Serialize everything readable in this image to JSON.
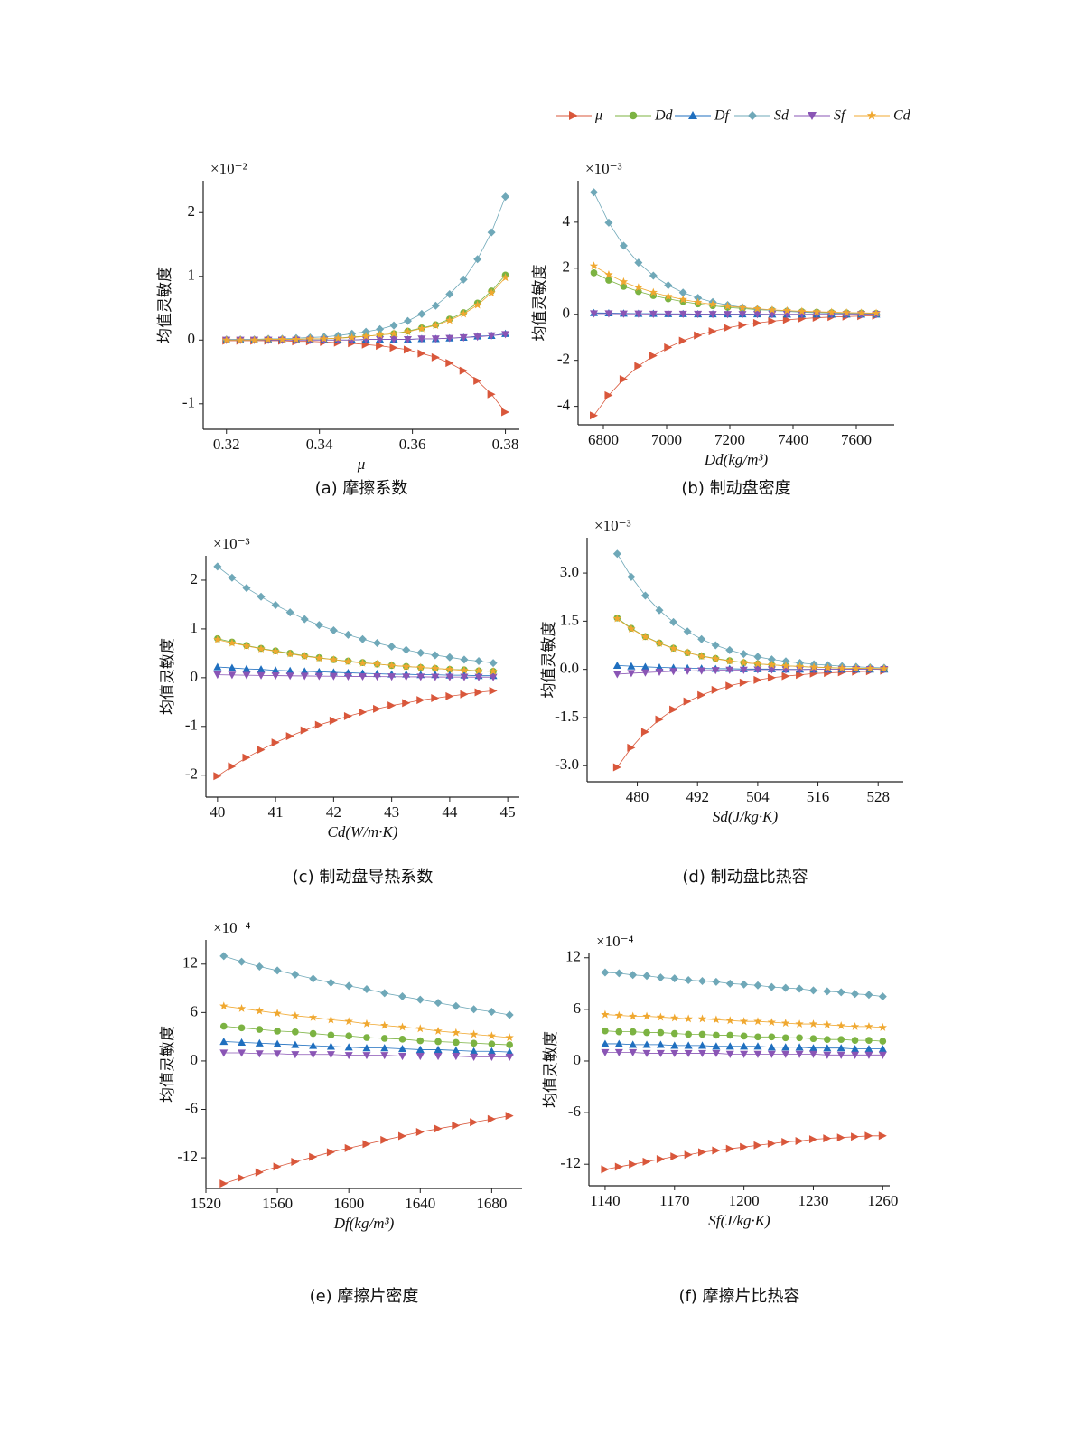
{
  "legend": [
    {
      "name": "μ",
      "color": "#d9573b",
      "marker": "triangle-right"
    },
    {
      "name": "Dd",
      "color": "#7cb342",
      "marker": "circle"
    },
    {
      "name": "Df",
      "color": "#1f6fbf",
      "marker": "triangle-up"
    },
    {
      "name": "Sd",
      "color": "#6fa8b8",
      "marker": "diamond"
    },
    {
      "name": "Sf",
      "color": "#8a55b5",
      "marker": "triangle-down"
    },
    {
      "name": "Cd",
      "color": "#f0a830",
      "marker": "star"
    }
  ],
  "chart_data": [
    {
      "type": "line",
      "caption": "(a) 摩擦系数",
      "scale": "×10⁻²",
      "xlabel": "μ",
      "ylabel": "均值灵敏度",
      "x": [
        0.32,
        0.323,
        0.326,
        0.329,
        0.332,
        0.335,
        0.338,
        0.341,
        0.344,
        0.347,
        0.35,
        0.353,
        0.356,
        0.359,
        0.362,
        0.365,
        0.368,
        0.371,
        0.374,
        0.377,
        0.38
      ],
      "xlim": [
        0.315,
        0.383
      ],
      "xticks": [
        0.32,
        0.34,
        0.36,
        0.38
      ],
      "ylim": [
        -1.4,
        2.5
      ],
      "yticks": [
        -1,
        0,
        1,
        2
      ],
      "series": [
        {
          "values": [
            -0.01,
            -0.01,
            -0.01,
            -0.01,
            -0.01,
            -0.02,
            -0.02,
            -0.03,
            -0.04,
            -0.05,
            -0.07,
            -0.09,
            -0.12,
            -0.15,
            -0.21,
            -0.27,
            -0.36,
            -0.48,
            -0.64,
            -0.85,
            -1.13
          ]
        },
        {
          "values": [
            0,
            0,
            0,
            0.01,
            0.01,
            0.01,
            0.02,
            0.02,
            0.03,
            0.05,
            0.06,
            0.08,
            0.1,
            0.14,
            0.19,
            0.24,
            0.33,
            0.43,
            0.58,
            0.77,
            1.02
          ]
        },
        {
          "values": [
            0,
            0,
            0,
            0,
            0,
            0,
            0,
            0,
            0,
            0,
            0.01,
            0.01,
            0.01,
            0.01,
            0.02,
            0.02,
            0.03,
            0.04,
            0.06,
            0.07,
            0.1
          ]
        },
        {
          "values": [
            0.01,
            0.01,
            0.01,
            0.02,
            0.02,
            0.03,
            0.04,
            0.05,
            0.07,
            0.1,
            0.13,
            0.17,
            0.23,
            0.3,
            0.41,
            0.54,
            0.72,
            0.95,
            1.27,
            1.69,
            2.25
          ]
        },
        {
          "values": [
            0,
            0,
            0,
            0,
            0,
            0,
            0,
            0,
            0,
            0,
            0.01,
            0.01,
            0.01,
            0.01,
            0.02,
            0.02,
            0.03,
            0.04,
            0.05,
            0.07,
            0.09
          ]
        },
        {
          "values": [
            0,
            0,
            0,
            0.01,
            0.01,
            0.01,
            0.02,
            0.02,
            0.03,
            0.04,
            0.06,
            0.08,
            0.1,
            0.13,
            0.18,
            0.23,
            0.31,
            0.41,
            0.55,
            0.74,
            0.98
          ]
        }
      ]
    },
    {
      "type": "line",
      "caption": "(b) 制动盘密度",
      "scale": "×10⁻³",
      "xlabel": "Dd(kg/m³)",
      "ylabel": "均值灵敏度",
      "x": [
        6770,
        6817,
        6864,
        6911,
        6958,
        7005,
        7052,
        7099,
        7146,
        7193,
        7240,
        7287,
        7334,
        7381,
        7428,
        7475,
        7522,
        7569,
        7616,
        7663
      ],
      "xlim": [
        6720,
        7720
      ],
      "xticks": [
        6800,
        7000,
        7200,
        7400,
        7600
      ],
      "ylim": [
        -4.8,
        5.8
      ],
      "yticks": [
        -4,
        -2,
        0,
        2,
        4
      ],
      "series": [
        {
          "values": [
            -4.4,
            -3.52,
            -2.82,
            -2.25,
            -1.8,
            -1.44,
            -1.15,
            -0.92,
            -0.74,
            -0.59,
            -0.47,
            -0.38,
            -0.3,
            -0.24,
            -0.19,
            -0.15,
            -0.12,
            -0.1,
            -0.08,
            -0.06
          ]
        },
        {
          "values": [
            1.8,
            1.48,
            1.21,
            0.99,
            0.81,
            0.67,
            0.55,
            0.45,
            0.37,
            0.3,
            0.25,
            0.2,
            0.17,
            0.14,
            0.11,
            0.09,
            0.07,
            0.06,
            0.05,
            0.04
          ]
        },
        {
          "values": [
            0.06,
            0.05,
            0.04,
            0.03,
            0.03,
            0.02,
            0.02,
            0.01,
            0.01,
            0.01,
            0.01,
            0.01,
            0,
            0,
            0,
            0,
            0,
            0,
            0,
            0
          ]
        },
        {
          "values": [
            5.3,
            3.98,
            2.98,
            2.24,
            1.68,
            1.26,
            0.94,
            0.71,
            0.53,
            0.4,
            0.3,
            0.22,
            0.17,
            0.13,
            0.09,
            0.07,
            0.05,
            0.04,
            0.03,
            0.02
          ]
        },
        {
          "values": [
            0.03,
            0.03,
            0.02,
            0.02,
            0.01,
            0.01,
            0.01,
            0.01,
            0,
            0,
            0,
            0,
            0,
            0,
            0,
            0,
            0,
            0,
            0,
            0
          ]
        },
        {
          "values": [
            2.1,
            1.72,
            1.41,
            1.16,
            0.95,
            0.78,
            0.64,
            0.52,
            0.43,
            0.35,
            0.29,
            0.24,
            0.19,
            0.16,
            0.13,
            0.11,
            0.09,
            0.07,
            0.06,
            0.05
          ]
        }
      ]
    },
    {
      "type": "line",
      "caption": "(c) 制动盘导热系数",
      "scale": "×10⁻³",
      "xlabel": "Cd(W/m·K)",
      "ylabel": "均值灵敏度",
      "x": [
        40,
        40.25,
        40.5,
        40.75,
        41,
        41.25,
        41.5,
        41.75,
        42,
        42.25,
        42.5,
        42.75,
        43,
        43.25,
        43.5,
        43.75,
        44,
        44.25,
        44.5,
        44.75
      ],
      "xlim": [
        39.8,
        45.2
      ],
      "xticks": [
        40,
        41,
        42,
        43,
        44,
        45
      ],
      "ylim": [
        -2.45,
        2.5
      ],
      "yticks": [
        -2,
        -1,
        0,
        1,
        2
      ],
      "series": [
        {
          "values": [
            -2.02,
            -1.82,
            -1.64,
            -1.48,
            -1.33,
            -1.2,
            -1.08,
            -0.97,
            -0.88,
            -0.79,
            -0.71,
            -0.64,
            -0.57,
            -0.52,
            -0.46,
            -0.42,
            -0.38,
            -0.34,
            -0.3,
            -0.27
          ]
        },
        {
          "values": [
            0.8,
            0.73,
            0.66,
            0.6,
            0.55,
            0.5,
            0.45,
            0.41,
            0.37,
            0.34,
            0.31,
            0.28,
            0.25,
            0.23,
            0.21,
            0.19,
            0.17,
            0.16,
            0.14,
            0.13
          ]
        },
        {
          "values": [
            0.22,
            0.2,
            0.18,
            0.17,
            0.15,
            0.14,
            0.13,
            0.12,
            0.11,
            0.1,
            0.09,
            0.08,
            0.07,
            0.07,
            0.06,
            0.06,
            0.05,
            0.05,
            0.04,
            0.04
          ]
        },
        {
          "values": [
            2.28,
            2.05,
            1.84,
            1.66,
            1.49,
            1.34,
            1.2,
            1.08,
            0.97,
            0.88,
            0.79,
            0.71,
            0.64,
            0.57,
            0.51,
            0.46,
            0.42,
            0.37,
            0.34,
            0.3
          ]
        },
        {
          "values": [
            0.06,
            0.055,
            0.05,
            0.046,
            0.042,
            0.038,
            0.035,
            0.032,
            0.029,
            0.026,
            0.024,
            0.022,
            0.02,
            0.018,
            0.017,
            0.015,
            0.014,
            0.013,
            0.012,
            0.011
          ]
        },
        {
          "values": [
            0.78,
            0.71,
            0.65,
            0.59,
            0.54,
            0.49,
            0.44,
            0.4,
            0.37,
            0.33,
            0.3,
            0.28,
            0.25,
            0.23,
            0.21,
            0.19,
            0.17,
            0.15,
            0.14,
            0.13
          ]
        }
      ]
    },
    {
      "type": "line",
      "caption": "(d) 制动盘比热容",
      "scale": "×10⁻³",
      "xlabel": "Sd(J/kg·K)",
      "ylabel": "均值灵敏度",
      "x": [
        476,
        478.8,
        481.6,
        484.4,
        487.2,
        490,
        492.8,
        495.6,
        498.4,
        501.2,
        504,
        506.8,
        509.6,
        512.4,
        515.2,
        518,
        520.8,
        523.6,
        526.4,
        529.2
      ],
      "xlim": [
        470,
        533
      ],
      "xticks": [
        480,
        492,
        504,
        516,
        528
      ],
      "ylim": [
        -3.5,
        4.1
      ],
      "yticks": [
        {
          "value": -3,
          "label": "-3.0"
        },
        {
          "value": -1.5,
          "label": "-1.5"
        },
        {
          "value": 0,
          "label": "0.0"
        },
        {
          "value": 1.5,
          "label": "1.5"
        },
        {
          "value": 3,
          "label": "3.0"
        }
      ],
      "series": [
        {
          "values": [
            -3.05,
            -2.44,
            -1.95,
            -1.56,
            -1.25,
            -1,
            -0.8,
            -0.64,
            -0.51,
            -0.41,
            -0.33,
            -0.26,
            -0.21,
            -0.17,
            -0.13,
            -0.11,
            -0.09,
            -0.07,
            -0.06,
            -0.04
          ]
        },
        {
          "values": [
            1.6,
            1.28,
            1.02,
            0.82,
            0.66,
            0.52,
            0.42,
            0.34,
            0.27,
            0.21,
            0.17,
            0.14,
            0.11,
            0.09,
            0.07,
            0.06,
            0.04,
            0.04,
            0.03,
            0.02
          ]
        },
        {
          "values": [
            0.12,
            0.1,
            0.08,
            0.06,
            0.05,
            0.04,
            0.03,
            0.02,
            0.02,
            0.01,
            0.01,
            0.01,
            0,
            0,
            0,
            0,
            0,
            0,
            0,
            0
          ]
        },
        {
          "values": [
            3.6,
            2.88,
            2.3,
            1.84,
            1.47,
            1.18,
            0.94,
            0.75,
            0.6,
            0.48,
            0.39,
            0.31,
            0.25,
            0.2,
            0.16,
            0.13,
            0.1,
            0.08,
            0.06,
            0.05
          ]
        },
        {
          "values": [
            -0.15,
            -0.12,
            -0.1,
            -0.08,
            -0.06,
            -0.05,
            -0.04,
            -0.03,
            -0.02,
            -0.02,
            -0.01,
            -0.01,
            -0.01,
            -0.01,
            0,
            0,
            0,
            0,
            0,
            0
          ]
        },
        {
          "values": [
            1.58,
            1.26,
            1.01,
            0.81,
            0.65,
            0.52,
            0.41,
            0.33,
            0.26,
            0.21,
            0.17,
            0.14,
            0.11,
            0.09,
            0.07,
            0.05,
            0.04,
            0.03,
            0.03,
            0.02
          ]
        }
      ]
    },
    {
      "type": "line",
      "caption": "(e) 摩擦片密度",
      "scale": "×10⁻⁴",
      "xlabel": "Df(kg/m³)",
      "ylabel": "均值灵敏度",
      "x": [
        1530,
        1540,
        1550,
        1560,
        1570,
        1580,
        1590,
        1600,
        1610,
        1620,
        1630,
        1640,
        1650,
        1660,
        1670,
        1680,
        1690
      ],
      "xlim": [
        1520,
        1697
      ],
      "xticks": [
        1520,
        1560,
        1600,
        1640,
        1680
      ],
      "ylim": [
        -15.8,
        15
      ],
      "yticks": [
        -12,
        -6,
        0,
        6,
        12
      ],
      "series": [
        {
          "values": [
            -15.2,
            -14.5,
            -13.8,
            -13.1,
            -12.5,
            -11.9,
            -11.3,
            -10.8,
            -10.3,
            -9.8,
            -9.3,
            -8.8,
            -8.4,
            -8,
            -7.6,
            -7.2,
            -6.8
          ]
        },
        {
          "values": [
            4.3,
            4.1,
            3.9,
            3.7,
            3.6,
            3.4,
            3.2,
            3.1,
            2.9,
            2.8,
            2.7,
            2.5,
            2.4,
            2.3,
            2.2,
            2.1,
            2
          ]
        },
        {
          "values": [
            2.4,
            2.3,
            2.2,
            2.1,
            2,
            1.9,
            1.8,
            1.7,
            1.6,
            1.6,
            1.5,
            1.4,
            1.4,
            1.3,
            1.2,
            1.2,
            1.1
          ]
        },
        {
          "values": [
            13,
            12.3,
            11.7,
            11.2,
            10.7,
            10.2,
            9.7,
            9.3,
            8.9,
            8.4,
            8,
            7.6,
            7.2,
            6.8,
            6.4,
            6.1,
            5.7
          ]
        },
        {
          "values": [
            1,
            1,
            0.9,
            0.9,
            0.8,
            0.8,
            0.8,
            0.7,
            0.7,
            0.7,
            0.6,
            0.6,
            0.6,
            0.6,
            0.5,
            0.5,
            0.5
          ]
        },
        {
          "values": [
            6.8,
            6.5,
            6.2,
            5.9,
            5.6,
            5.4,
            5.1,
            4.9,
            4.6,
            4.4,
            4.2,
            4,
            3.7,
            3.5,
            3.3,
            3.1,
            2.9
          ]
        }
      ]
    },
    {
      "type": "line",
      "caption": "(f) 摩擦片比热容",
      "scale": "×10⁻⁴",
      "xlabel": "Sf(J/kg·K)",
      "ylabel": "均值灵敏度",
      "x": [
        1140,
        1146,
        1152,
        1158,
        1164,
        1170,
        1176,
        1182,
        1188,
        1194,
        1200,
        1206,
        1212,
        1218,
        1224,
        1230,
        1236,
        1242,
        1248,
        1254,
        1260
      ],
      "xlim": [
        1133,
        1263
      ],
      "xticks": [
        1140,
        1170,
        1200,
        1230,
        1260
      ],
      "ylim": [
        -14.5,
        12.5
      ],
      "yticks": [
        -12,
        -6,
        0,
        6,
        12
      ],
      "series": [
        {
          "values": [
            -12.6,
            -12.3,
            -12,
            -11.7,
            -11.4,
            -11.1,
            -10.9,
            -10.6,
            -10.4,
            -10.2,
            -10,
            -9.8,
            -9.6,
            -9.4,
            -9.3,
            -9.1,
            -9,
            -8.9,
            -8.8,
            -8.7,
            -8.7
          ]
        },
        {
          "values": [
            3.5,
            3.4,
            3.4,
            3.3,
            3.3,
            3.2,
            3.1,
            3.1,
            3,
            3,
            2.9,
            2.8,
            2.8,
            2.7,
            2.7,
            2.6,
            2.5,
            2.5,
            2.4,
            2.4,
            2.3
          ]
        },
        {
          "values": [
            2,
            2,
            1.9,
            1.9,
            1.9,
            1.8,
            1.8,
            1.8,
            1.7,
            1.7,
            1.7,
            1.7,
            1.6,
            1.6,
            1.6,
            1.5,
            1.5,
            1.5,
            1.4,
            1.4,
            1.4
          ]
        },
        {
          "values": [
            10.3,
            10.2,
            10,
            9.9,
            9.7,
            9.6,
            9.4,
            9.3,
            9.2,
            9,
            8.9,
            8.8,
            8.6,
            8.5,
            8.4,
            8.2,
            8.1,
            8,
            7.8,
            7.7,
            7.5
          ]
        },
        {
          "values": [
            1,
            1,
            1,
            0.9,
            0.9,
            0.9,
            0.9,
            0.9,
            0.9,
            0.8,
            0.8,
            0.8,
            0.8,
            0.8,
            0.8,
            0.8,
            0.7,
            0.7,
            0.7,
            0.7,
            0.7
          ]
        },
        {
          "values": [
            5.4,
            5.3,
            5.2,
            5.2,
            5.1,
            5,
            4.9,
            4.9,
            4.8,
            4.7,
            4.6,
            4.6,
            4.5,
            4.4,
            4.3,
            4.3,
            4.2,
            4.1,
            4,
            4,
            3.9
          ]
        }
      ]
    }
  ]
}
